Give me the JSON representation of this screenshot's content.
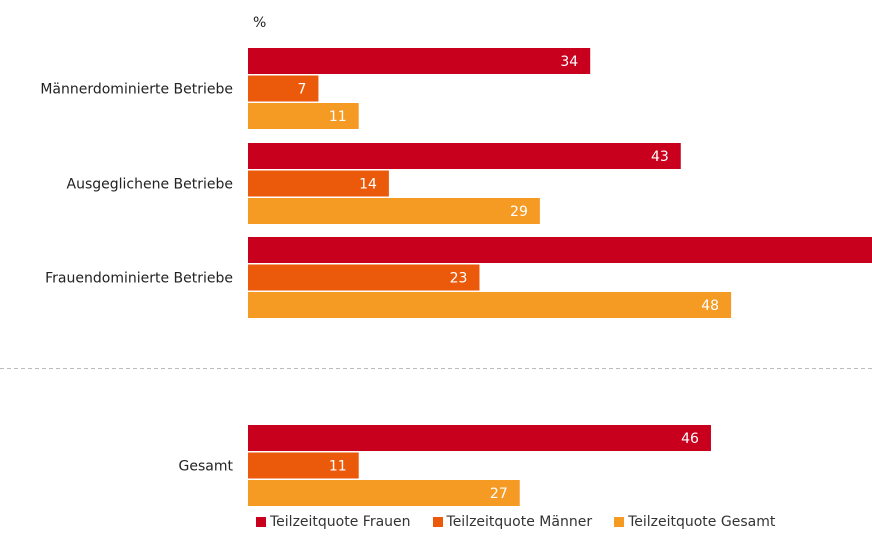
{
  "chart_data": {
    "type": "bar",
    "orientation": "horizontal",
    "unit_label": "%",
    "categories": [
      "Männerdominierte Betriebe",
      "Ausgeglichene Betriebe",
      "Frauendominierte Betriebe",
      "Gesamt"
    ],
    "series": [
      {
        "name": "Teilzeitquote Frauen",
        "color": "#c8001e",
        "values": [
          34,
          43,
          62,
          46
        ]
      },
      {
        "name": "Teilzeitquote Männer",
        "color": "#eb5a0a",
        "values": [
          7,
          14,
          23,
          11
        ]
      },
      {
        "name": "Teilzeitquote Gesamt",
        "color": "#f59a23",
        "values": [
          11,
          29,
          48,
          27
        ]
      }
    ],
    "xlim": [
      0,
      62
    ],
    "grid": false,
    "legend_position": "bottom"
  }
}
